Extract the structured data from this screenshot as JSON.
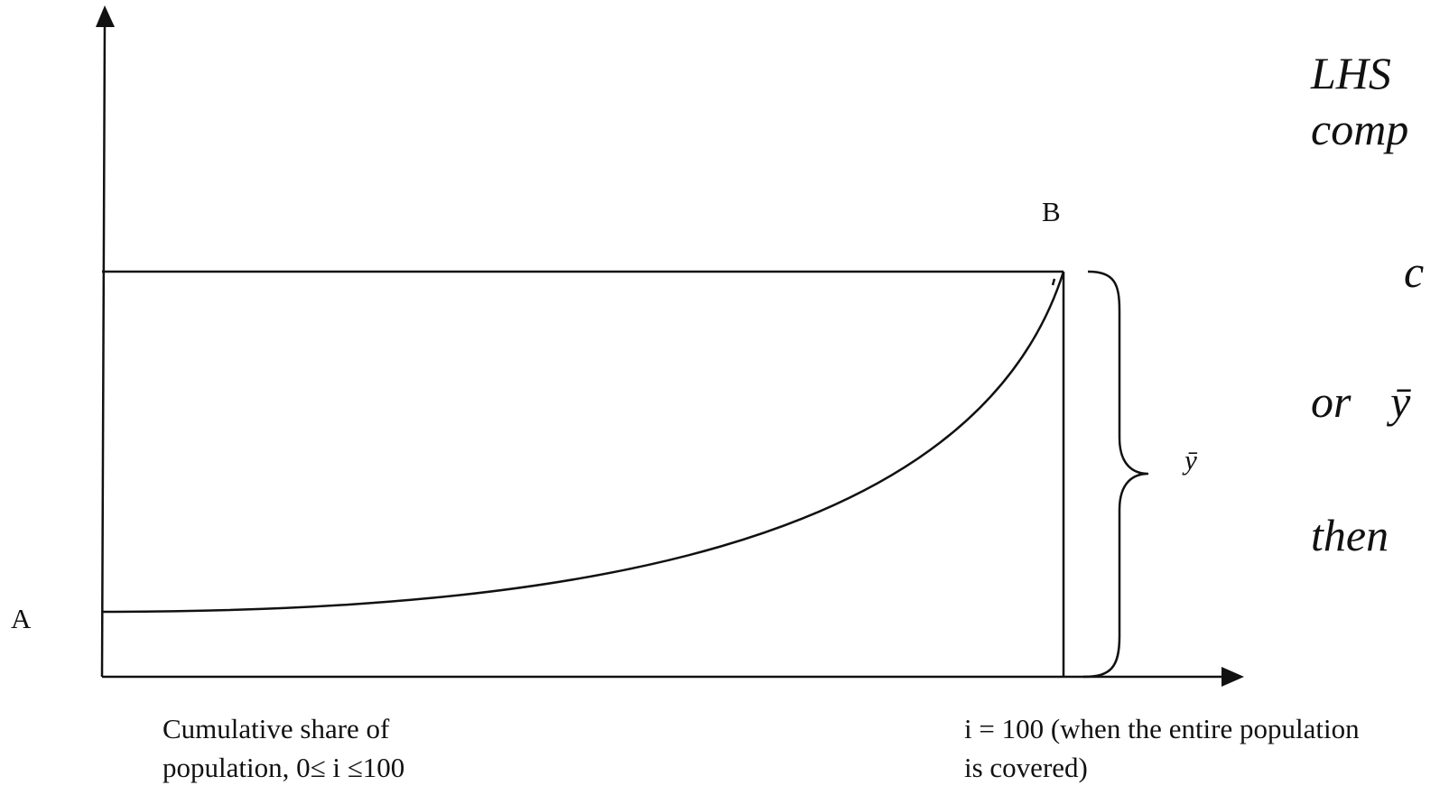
{
  "diagram": {
    "point_a": "A",
    "point_b": "B",
    "mean_label": "ȳ",
    "x_axis_label": [
      "Cumulative share of",
      "population, 0≤ i ≤100"
    ],
    "end_label": [
      "i = 100 (when the entire population",
      "is covered)"
    ],
    "side_text": [
      "LHS",
      "comp",
      "c",
      "or",
      "ȳ",
      "then"
    ]
  }
}
